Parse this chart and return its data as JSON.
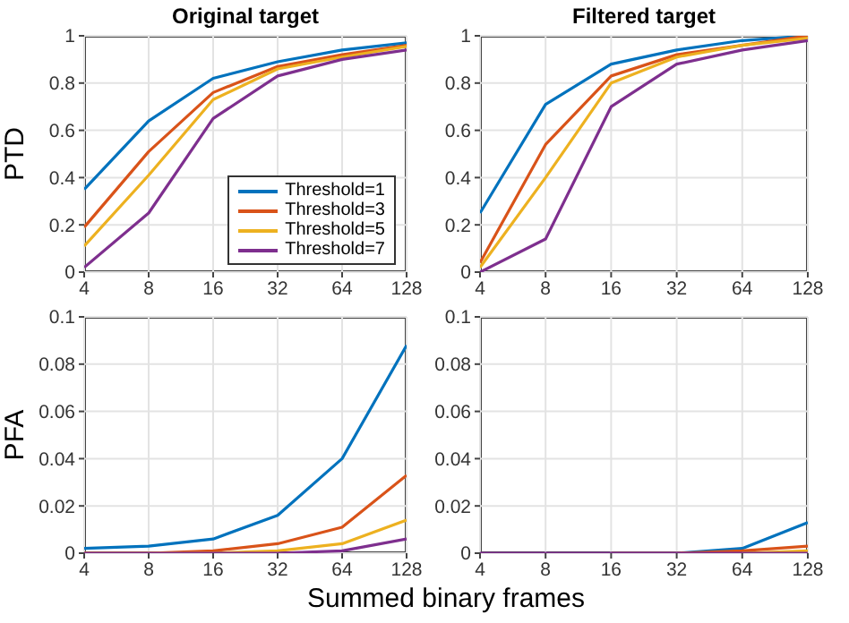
{
  "chart_data": [
    {
      "type": "line",
      "title": "Original target",
      "ylabel": "PTD",
      "categories": [
        "4",
        "8",
        "16",
        "32",
        "64",
        "128"
      ],
      "ylim": [
        0,
        1
      ],
      "yticks": [
        0,
        0.2,
        0.4,
        0.6,
        0.8,
        1
      ],
      "grid": true,
      "legend": "bottom right",
      "line_style": "solid",
      "series": [
        {
          "name": "Threshold=1",
          "color": "#0072bd",
          "values": [
            0.35,
            0.64,
            0.82,
            0.89,
            0.94,
            0.97
          ]
        },
        {
          "name": "Threshold=3",
          "color": "#d95319",
          "values": [
            0.19,
            0.51,
            0.76,
            0.87,
            0.92,
            0.96
          ]
        },
        {
          "name": "Threshold=5",
          "color": "#edb120",
          "values": [
            0.11,
            0.41,
            0.73,
            0.86,
            0.91,
            0.955
          ]
        },
        {
          "name": "Threshold=7",
          "color": "#7e2f8e",
          "values": [
            0.02,
            0.25,
            0.65,
            0.83,
            0.9,
            0.94
          ]
        }
      ]
    },
    {
      "type": "line",
      "title": "Filtered target",
      "categories": [
        "4",
        "8",
        "16",
        "32",
        "64",
        "128"
      ],
      "ylim": [
        0,
        1
      ],
      "yticks": [
        0,
        0.2,
        0.4,
        0.6,
        0.8,
        1
      ],
      "grid": true,
      "line_style": "solid",
      "series": [
        {
          "color": "#0072bd",
          "values": [
            0.25,
            0.71,
            0.88,
            0.94,
            0.98,
            1.0
          ]
        },
        {
          "color": "#d95319",
          "values": [
            0.04,
            0.54,
            0.83,
            0.92,
            0.96,
            1.0
          ]
        },
        {
          "color": "#edb120",
          "values": [
            0.02,
            0.4,
            0.8,
            0.91,
            0.96,
            0.99
          ]
        },
        {
          "color": "#7e2f8e",
          "values": [
            0,
            0.14,
            0.7,
            0.88,
            0.94,
            0.98
          ]
        }
      ]
    },
    {
      "type": "line",
      "ylabel": "PFA",
      "xlabel": "Summed binary frames",
      "categories": [
        "4",
        "8",
        "16",
        "32",
        "64",
        "128"
      ],
      "ylim": [
        0,
        0.1
      ],
      "yticks": [
        0,
        0.02,
        0.04,
        0.06,
        0.08,
        0.1
      ],
      "grid": true,
      "line_style": "solid",
      "series": [
        {
          "color": "#0072bd",
          "values": [
            0.002,
            0.003,
            0.006,
            0.016,
            0.04,
            0.088
          ]
        },
        {
          "color": "#d95319",
          "values": [
            0,
            0,
            0.001,
            0.004,
            0.011,
            0.033
          ]
        },
        {
          "color": "#edb120",
          "values": [
            0,
            0,
            0,
            0.001,
            0.004,
            0.014
          ]
        },
        {
          "color": "#7e2f8e",
          "values": [
            0,
            0,
            0,
            0,
            0.001,
            0.006
          ]
        }
      ]
    },
    {
      "type": "line",
      "categories": [
        "4",
        "8",
        "16",
        "32",
        "64",
        "128"
      ],
      "ylim": [
        0,
        0.1
      ],
      "yticks": [
        0,
        0.02,
        0.04,
        0.06,
        0.08,
        0.1
      ],
      "grid": true,
      "line_style": "solid",
      "series": [
        {
          "color": "#0072bd",
          "values": [
            null,
            null,
            0,
            0,
            0.002,
            0.013
          ]
        },
        {
          "color": "#d95319",
          "values": [
            null,
            null,
            0,
            0,
            0.001,
            0.003
          ]
        },
        {
          "color": "#edb120",
          "values": [
            null,
            null,
            null,
            null,
            0,
            0.001
          ]
        },
        {
          "color": "#7e2f8e",
          "values": [
            0,
            0,
            0,
            0,
            0,
            0
          ]
        }
      ]
    }
  ]
}
